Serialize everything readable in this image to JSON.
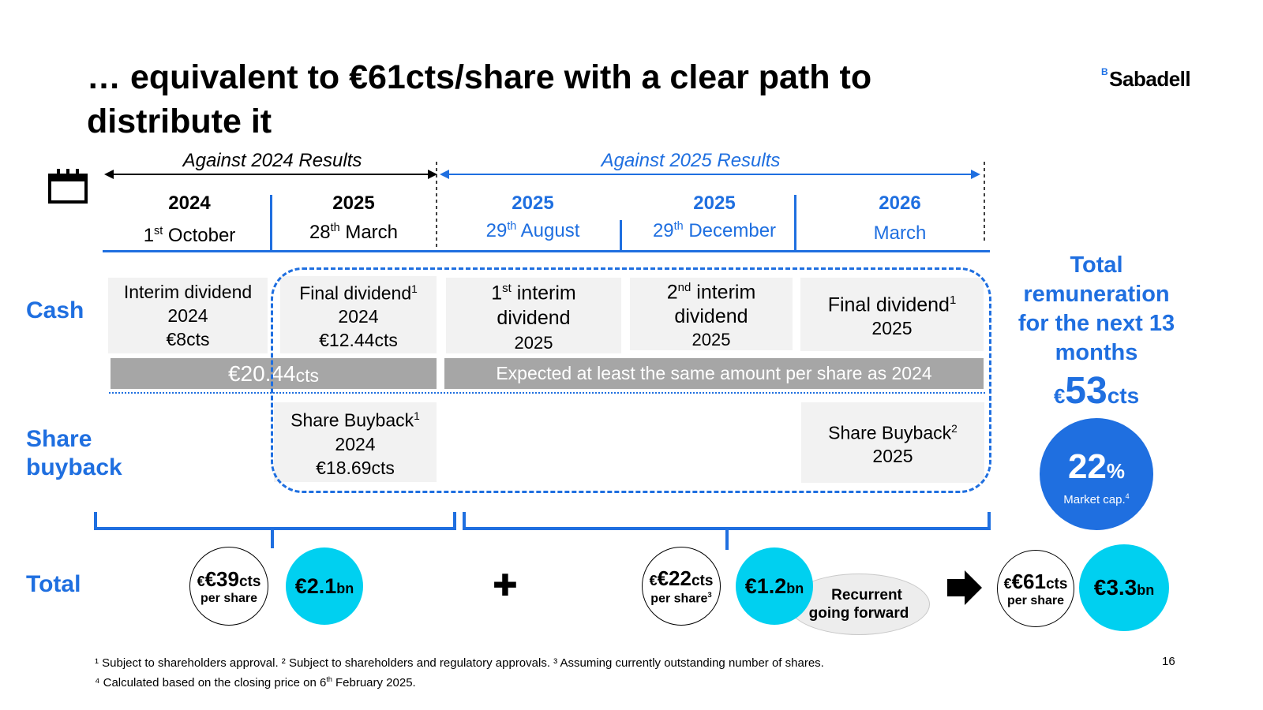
{
  "title": "… equivalent to €61cts/share with a clear path to distribute it",
  "logo": {
    "mark": "B",
    "text": "Sabadell"
  },
  "periods": {
    "p2024": "Against 2024 Results",
    "p2025": "Against 2025 Results"
  },
  "timeline": [
    {
      "year": "2024",
      "date_pre": "1",
      "date_sup": "st",
      "date_post": " October"
    },
    {
      "year": "2025",
      "date_pre": "28",
      "date_sup": "th",
      "date_post": " March"
    },
    {
      "year": "2025",
      "date_pre": "29",
      "date_sup": "th",
      "date_post": " August"
    },
    {
      "year": "2025",
      "date_pre": "29",
      "date_sup": "th",
      "date_post": " December"
    },
    {
      "year": "2026",
      "date_pre": "March",
      "date_sup": "",
      "date_post": ""
    }
  ],
  "rows": {
    "cash": "Cash",
    "share_buyback_1": "Share",
    "share_buyback_2": "buyback",
    "total": "Total"
  },
  "cash_boxes": [
    {
      "l1": "Interim dividend",
      "l2": "2024",
      "l3": "€8cts"
    },
    {
      "l1": "Final dividend",
      "sup": "1",
      "l2": "2024",
      "l3": "€12.44cts"
    },
    {
      "l1a": "1",
      "sup": "st",
      "l1b": " interim",
      "l2": "dividend",
      "l3": "2025"
    },
    {
      "l1a": "2",
      "sup": "nd",
      "l1b": " interim",
      "l2": "dividend",
      "l3": "2025"
    },
    {
      "l1": "Final dividend",
      "sup": "1",
      "l2": "2025"
    }
  ],
  "bars": {
    "left_value": "€20.44",
    "left_unit": "cts",
    "right": "Expected at least the same amount per share as 2024"
  },
  "buyback_boxes": [
    {
      "l1": "Share Buyback",
      "sup": "1",
      "l2": "2024",
      "l3": "€18.69cts"
    },
    {
      "l1": "Share Buyback",
      "sup": "2",
      "l2": "2025"
    }
  ],
  "totals": {
    "left_per_share": "€39",
    "left_cts": "cts",
    "per_share": "per share",
    "left_bn": "€2.1",
    "bn": "bn",
    "plus": "✚",
    "mid_per_share": "€22",
    "mid_cts": "cts",
    "mid_sup": "3",
    "mid_bn": "€1.2",
    "recurrent_1": "Recurrent",
    "recurrent_2": "going forward",
    "right_per_share": "€61",
    "right_cts": "cts",
    "right_bn": "€3.3"
  },
  "side": {
    "heading_1": "Total",
    "heading_2": "remuneration",
    "heading_3": "for the next 13",
    "heading_4": "months",
    "amount_euro": "€",
    "amount": "53",
    "amount_unit": "cts",
    "pct": "22",
    "pct_sign": "%",
    "mcap": "Market cap.",
    "mcap_sup": "4"
  },
  "footnotes": {
    "line1": "¹ Subject to shareholders approval. ² Subject to shareholders and regulatory approvals. ³ Assuming currently outstanding number of shares.",
    "line2_pre": "⁴ Calculated based on the closing price on 6",
    "line2_sup": "th",
    "line2_post": " February 2025."
  },
  "page_number": "16",
  "colors": {
    "accent": "#1f6fe0",
    "cyan": "#00d0f0",
    "grey_bar": "#a6a6a6",
    "box": "#f2f2f2"
  }
}
